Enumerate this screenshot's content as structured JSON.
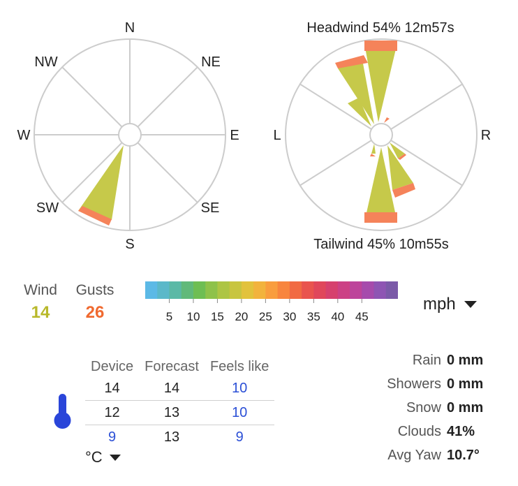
{
  "compass": {
    "labels": [
      "N",
      "NE",
      "E",
      "SE",
      "S",
      "SW",
      "W",
      "NW"
    ],
    "wind_slice": {
      "direction": "SSW",
      "wind_mph": 14,
      "gust_mph": 26
    }
  },
  "relative": {
    "headwind_text": "Headwind 54% 12m57s",
    "tailwind_text": "Tailwind 45% 10m55s",
    "left_label": "L",
    "right_label": "R"
  },
  "wind": {
    "label": "Wind",
    "value": "14",
    "color": "#b8b82a"
  },
  "gusts": {
    "label": "Gusts",
    "value": "26",
    "color": "#f06a30"
  },
  "scale": {
    "ticks": [
      "5",
      "10",
      "15",
      "20",
      "25",
      "30",
      "35",
      "40",
      "45"
    ],
    "colors": [
      "#5cb9e6",
      "#5bb8c9",
      "#5bb9a6",
      "#61b97a",
      "#6ebe53",
      "#8ec24a",
      "#adc544",
      "#c8c540",
      "#e2c23c",
      "#f2b33d",
      "#f99d3e",
      "#f8853e",
      "#f16a43",
      "#e9544e",
      "#e0475b",
      "#d6416e",
      "#cc4185",
      "#bd449b",
      "#a64bac",
      "#8e55b3",
      "#7b5aa8"
    ],
    "unit": "mph"
  },
  "temps": {
    "headers": [
      "Device",
      "Forecast",
      "Feels like"
    ],
    "rows": [
      [
        "14",
        "14",
        "10"
      ],
      [
        "12",
        "13",
        "10"
      ],
      [
        "9",
        "13",
        "9"
      ]
    ],
    "unit": "°C"
  },
  "stats": [
    {
      "label": "Rain",
      "value": "0 mm"
    },
    {
      "label": "Showers",
      "value": "0 mm"
    },
    {
      "label": "Snow",
      "value": "0 mm"
    },
    {
      "label": "Clouds",
      "value": "41%"
    },
    {
      "label": "Avg Yaw",
      "value": "10.7°"
    }
  ]
}
